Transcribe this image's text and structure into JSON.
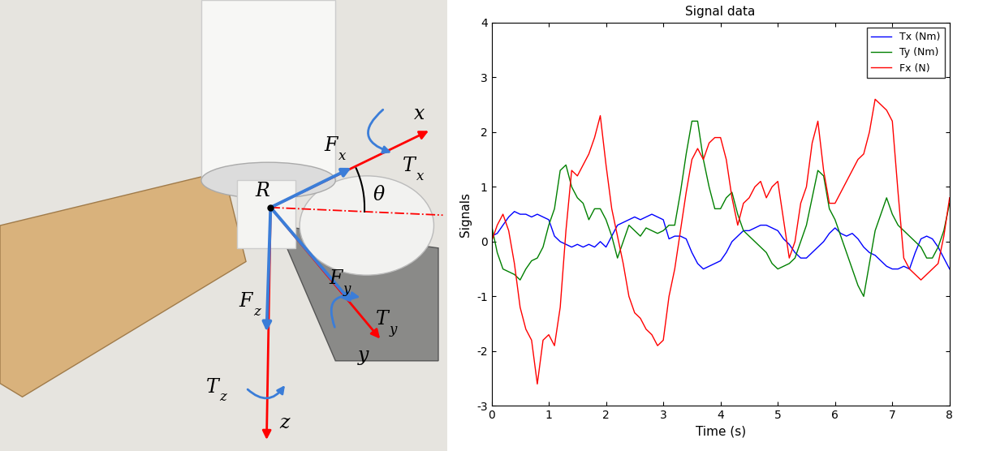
{
  "diagram": {
    "origin": "R",
    "angle": "θ",
    "axes": [
      "x",
      "y",
      "z"
    ],
    "forces": [
      "Fx",
      "Fy",
      "Fz"
    ],
    "torques": [
      "Tx",
      "Ty",
      "Tz"
    ]
  },
  "chart_data": {
    "type": "line",
    "title": "Signal data",
    "x_label": "Time (s)",
    "y_label": "Signals",
    "xlim": [
      0,
      8
    ],
    "xticks": [
      0,
      1,
      2,
      3,
      4,
      5,
      6,
      7,
      8
    ],
    "ylim": [
      -3,
      4
    ],
    "yticks": [
      -3,
      -2,
      -1,
      0,
      1,
      2,
      3,
      4
    ],
    "grid": false,
    "legend": "upper right",
    "x": [
      0.0,
      0.1,
      0.2,
      0.3,
      0.4,
      0.5,
      0.6,
      0.7,
      0.8,
      0.9,
      1.0,
      1.1,
      1.2,
      1.3,
      1.4,
      1.5,
      1.6,
      1.7,
      1.8,
      1.9,
      2.0,
      2.1,
      2.2,
      2.3,
      2.4,
      2.5,
      2.6,
      2.7,
      2.8,
      2.9,
      3.0,
      3.1,
      3.2,
      3.3,
      3.4,
      3.5,
      3.6,
      3.7,
      3.8,
      3.9,
      4.0,
      4.1,
      4.2,
      4.3,
      4.4,
      4.5,
      4.6,
      4.7,
      4.8,
      4.9,
      5.0,
      5.1,
      5.2,
      5.3,
      5.4,
      5.5,
      5.6,
      5.7,
      5.8,
      5.9,
      6.0,
      6.1,
      6.2,
      6.3,
      6.4,
      6.5,
      6.6,
      6.7,
      6.8,
      6.9,
      7.0,
      7.1,
      7.2,
      7.3,
      7.4,
      7.5,
      7.6,
      7.7,
      7.8,
      7.9,
      8.0
    ],
    "series": [
      {
        "name": "Tx (Nm)",
        "color": "#0000ff",
        "values": [
          0.1,
          0.15,
          0.3,
          0.45,
          0.55,
          0.5,
          0.5,
          0.45,
          0.5,
          0.45,
          0.4,
          0.1,
          0.0,
          -0.05,
          -0.1,
          -0.05,
          -0.1,
          -0.05,
          -0.1,
          0.0,
          -0.1,
          0.1,
          0.3,
          0.35,
          0.4,
          0.45,
          0.4,
          0.45,
          0.5,
          0.45,
          0.4,
          0.05,
          0.1,
          0.1,
          0.05,
          -0.2,
          -0.4,
          -0.5,
          -0.45,
          -0.4,
          -0.35,
          -0.2,
          0.0,
          0.1,
          0.2,
          0.2,
          0.25,
          0.3,
          0.3,
          0.25,
          0.2,
          0.05,
          -0.05,
          -0.2,
          -0.3,
          -0.3,
          -0.2,
          -0.1,
          0.0,
          0.15,
          0.25,
          0.15,
          0.1,
          0.15,
          0.05,
          -0.1,
          -0.2,
          -0.25,
          -0.35,
          -0.45,
          -0.5,
          -0.5,
          -0.45,
          -0.5,
          -0.2,
          0.05,
          0.1,
          0.05,
          -0.1,
          -0.3,
          -0.5
        ]
      },
      {
        "name": "Ty (Nm)",
        "color": "#008000",
        "values": [
          0.3,
          -0.2,
          -0.5,
          -0.55,
          -0.6,
          -0.7,
          -0.5,
          -0.35,
          -0.3,
          -0.1,
          0.3,
          0.6,
          1.3,
          1.4,
          1.0,
          0.8,
          0.7,
          0.4,
          0.6,
          0.6,
          0.4,
          0.1,
          -0.3,
          0.0,
          0.3,
          0.2,
          0.1,
          0.25,
          0.2,
          0.15,
          0.2,
          0.3,
          0.3,
          0.9,
          1.6,
          2.2,
          2.2,
          1.5,
          1.0,
          0.6,
          0.6,
          0.8,
          0.9,
          0.5,
          0.2,
          0.1,
          0.0,
          -0.1,
          -0.2,
          -0.4,
          -0.5,
          -0.45,
          -0.4,
          -0.3,
          0.0,
          0.3,
          0.8,
          1.3,
          1.2,
          0.6,
          0.4,
          0.1,
          -0.2,
          -0.5,
          -0.8,
          -1.0,
          -0.4,
          0.2,
          0.5,
          0.8,
          0.5,
          0.3,
          0.2,
          0.1,
          0.0,
          -0.1,
          -0.3,
          -0.3,
          -0.1,
          0.2,
          0.7
        ]
      },
      {
        "name": "Fx (N)",
        "color": "#ff0000",
        "values": [
          0.0,
          0.3,
          0.5,
          0.2,
          -0.4,
          -1.2,
          -1.6,
          -1.8,
          -2.6,
          -1.8,
          -1.7,
          -1.9,
          -1.2,
          0.2,
          1.3,
          1.2,
          1.4,
          1.6,
          1.9,
          2.3,
          1.4,
          0.6,
          0.1,
          -0.4,
          -1.0,
          -1.3,
          -1.4,
          -1.6,
          -1.7,
          -1.9,
          -1.8,
          -1.0,
          -0.5,
          0.2,
          0.9,
          1.5,
          1.7,
          1.5,
          1.8,
          1.9,
          1.9,
          1.5,
          0.8,
          0.3,
          0.7,
          0.8,
          1.0,
          1.1,
          0.8,
          1.0,
          1.1,
          0.4,
          -0.3,
          0.0,
          0.7,
          1.0,
          1.8,
          2.2,
          1.3,
          0.7,
          0.7,
          0.9,
          1.1,
          1.3,
          1.5,
          1.6,
          2.0,
          2.6,
          2.5,
          2.4,
          2.2,
          0.9,
          -0.3,
          -0.5,
          -0.6,
          -0.7,
          -0.6,
          -0.5,
          -0.4,
          0.1,
          0.8
        ]
      }
    ]
  }
}
